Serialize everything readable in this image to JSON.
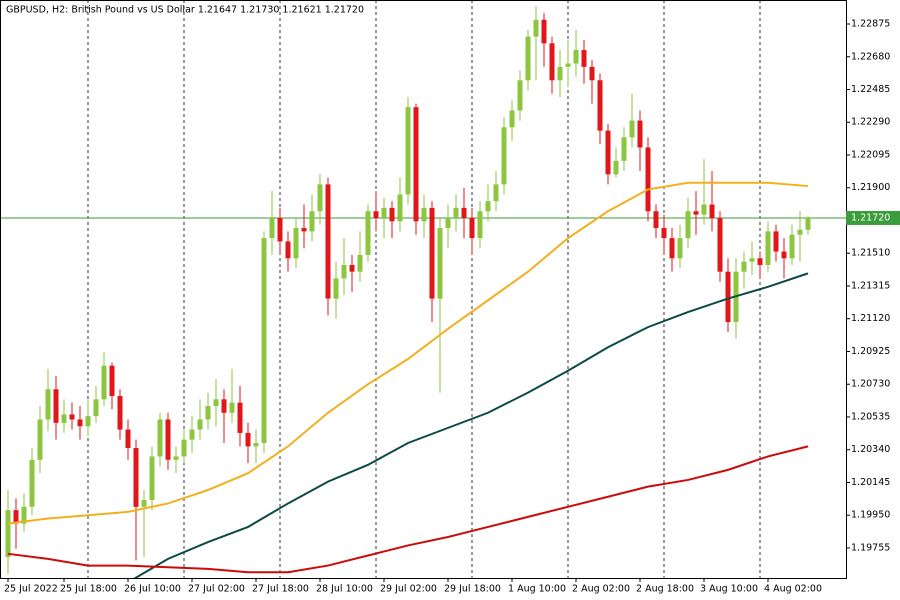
{
  "chart_data": {
    "type": "candlestick",
    "title": "GBPUSD, H2:  British Pound vs US Dollar  1.21647 1.21730 1.21621 1.21720",
    "categories": [
      "25 Jul 2022",
      null,
      null,
      null,
      null,
      null,
      null,
      "25 Jul 18:00",
      null,
      null,
      null,
      null,
      null,
      null,
      null,
      "26 Jul 10:00",
      null,
      null,
      null,
      null,
      null,
      null,
      null,
      "27 Jul 02:00",
      null,
      null,
      null,
      null,
      null,
      null,
      null,
      "27 Jul 18:00",
      null,
      null,
      null,
      null,
      null,
      null,
      null,
      "28 Jul 10:00",
      null,
      null,
      null,
      null,
      null,
      null,
      null,
      "29 Jul 02:00",
      null,
      null,
      null,
      null,
      null,
      null,
      null,
      "29 Jul 18:00",
      null,
      null,
      null,
      null,
      null,
      null,
      null,
      "1 Aug 10:00",
      null,
      null,
      null,
      null,
      null,
      null,
      null,
      "2 Aug 02:00",
      null,
      null,
      null,
      null,
      null,
      null,
      null,
      "2 Aug 18:00",
      null,
      null,
      null,
      null,
      null,
      null,
      null,
      "3 Aug 10:00",
      null,
      null,
      null,
      null,
      null,
      null,
      null,
      "4 Aug 02:00",
      null,
      null,
      null,
      null,
      null
    ],
    "open": [
      1.197,
      1.1998,
      1.199,
      1.2,
      1.2028,
      1.2052,
      1.207,
      1.205,
      1.2055,
      1.2052,
      1.2048,
      1.2054,
      1.2064,
      1.2084,
      1.2066,
      1.2046,
      1.2035,
      1.2,
      1.2004,
      1.203,
      1.2052,
      1.2028,
      1.203,
      1.204,
      1.2046,
      1.2052,
      1.206,
      1.2064,
      1.2056,
      1.2062,
      1.2044,
      1.2036,
      1.2038,
      1.216,
      1.2172,
      1.2158,
      1.2148,
      1.2166,
      1.2164,
      1.2176,
      1.2192,
      1.2124,
      1.2136,
      1.2144,
      1.214,
      1.215,
      1.2176,
      1.2172,
      1.2178,
      1.217,
      1.2186,
      1.2238,
      1.217,
      1.2178,
      1.2124,
      1.2166,
      1.2172,
      1.2178,
      1.2172,
      1.216,
      1.2176,
      1.2182,
      1.2192,
      1.2226,
      1.2236,
      1.2254,
      1.228,
      1.229,
      1.2276,
      1.2254,
      1.2262,
      1.2264,
      1.2272,
      1.2262,
      1.2254,
      1.2224,
      1.2198,
      1.2206,
      1.222,
      1.223,
      1.2214,
      1.2176,
      1.2166,
      1.216,
      1.2148,
      1.216,
      1.2176,
      1.2174,
      1.218,
      1.2172,
      1.214,
      1.211,
      1.214,
      1.2146,
      1.2148,
      1.2144,
      1.2164,
      1.2152,
      1.2148,
      1.2162,
      1.2165
    ],
    "high": [
      1.201,
      1.2005,
      1.2008,
      1.2035,
      1.206,
      1.2082,
      1.2078,
      1.2064,
      1.2062,
      1.206,
      1.2064,
      1.2072,
      1.2092,
      1.2086,
      1.207,
      1.2052,
      1.204,
      1.201,
      1.2036,
      1.2056,
      1.2056,
      1.2036,
      1.2046,
      1.2054,
      1.2064,
      1.2068,
      1.2076,
      1.207,
      1.2082,
      1.2072,
      1.205,
      1.2046,
      1.2164,
      1.2188,
      1.2178,
      1.2164,
      1.2172,
      1.218,
      1.2186,
      1.2198,
      1.2196,
      1.2146,
      1.216,
      1.215,
      1.2164,
      1.218,
      1.2188,
      1.2184,
      1.2182,
      1.2196,
      1.2244,
      1.224,
      1.2186,
      1.2182,
      1.2172,
      1.218,
      1.2186,
      1.219,
      1.2178,
      1.2182,
      1.2192,
      1.22,
      1.2232,
      1.2242,
      1.226,
      1.2284,
      1.2298,
      1.2294,
      1.228,
      1.2272,
      1.2278,
      1.2284,
      1.2278,
      1.2266,
      1.2258,
      1.2228,
      1.2214,
      1.2226,
      1.2246,
      1.2236,
      1.222,
      1.218,
      1.2174,
      1.2166,
      1.2168,
      1.2184,
      1.2188,
      1.2207,
      1.22,
      1.2176,
      1.2148,
      1.2148,
      1.2152,
      1.2158,
      1.2152,
      1.217,
      1.2168,
      1.216,
      1.2168,
      1.2176,
      1.2173
    ],
    "low": [
      1.196,
      1.1975,
      1.1985,
      1.1995,
      1.202,
      1.2045,
      1.204,
      1.2044,
      1.2046,
      1.204,
      1.2042,
      1.205,
      1.206,
      1.2058,
      1.204,
      1.2028,
      1.1968,
      1.197,
      1.1998,
      1.2024,
      1.2022,
      1.202,
      1.2026,
      1.2032,
      1.204,
      1.2046,
      1.2048,
      1.2038,
      1.205,
      1.2036,
      1.2026,
      1.2026,
      1.2032,
      1.215,
      1.215,
      1.214,
      1.2142,
      1.2154,
      1.2158,
      1.2168,
      1.2114,
      1.2112,
      1.2126,
      1.2128,
      1.2134,
      1.2146,
      1.2164,
      1.216,
      1.216,
      1.2164,
      1.218,
      1.2162,
      1.216,
      1.211,
      1.2068,
      1.2154,
      1.2164,
      1.216,
      1.215,
      1.2154,
      1.217,
      1.2176,
      1.2186,
      1.2218,
      1.223,
      1.2248,
      1.2254,
      1.2262,
      1.2246,
      1.2244,
      1.225,
      1.2256,
      1.2252,
      1.224,
      1.2216,
      1.2192,
      1.2196,
      1.22,
      1.2214,
      1.22,
      1.217,
      1.216,
      1.215,
      1.214,
      1.2142,
      1.2154,
      1.2162,
      1.2168,
      1.2164,
      1.2134,
      1.2104,
      1.21,
      1.213,
      1.2138,
      1.2136,
      1.214,
      1.2146,
      1.2136,
      1.2144,
      1.2146,
      1.2162
    ],
    "close": [
      1.1998,
      1.199,
      1.2,
      1.2028,
      1.2052,
      1.207,
      1.205,
      1.2055,
      1.2052,
      1.2048,
      1.2054,
      1.2064,
      1.2084,
      1.2066,
      1.2046,
      1.2035,
      1.2,
      1.2004,
      1.203,
      1.2052,
      1.2028,
      1.203,
      1.204,
      1.2046,
      1.2052,
      1.206,
      1.2064,
      1.2056,
      1.2062,
      1.2044,
      1.2036,
      1.2038,
      1.216,
      1.2172,
      1.2158,
      1.2148,
      1.2166,
      1.2164,
      1.2176,
      1.2192,
      1.2124,
      1.2136,
      1.2144,
      1.214,
      1.215,
      1.2176,
      1.2172,
      1.2178,
      1.217,
      1.2186,
      1.2238,
      1.217,
      1.2178,
      1.2124,
      1.2166,
      1.2172,
      1.2178,
      1.2172,
      1.216,
      1.2176,
      1.2182,
      1.2192,
      1.2226,
      1.2236,
      1.2254,
      1.228,
      1.229,
      1.2276,
      1.2254,
      1.2262,
      1.2264,
      1.2272,
      1.2262,
      1.2254,
      1.2224,
      1.2198,
      1.2206,
      1.222,
      1.223,
      1.2214,
      1.2176,
      1.2166,
      1.216,
      1.2148,
      1.216,
      1.2176,
      1.2174,
      1.218,
      1.2172,
      1.214,
      1.211,
      1.214,
      1.2146,
      1.2148,
      1.2144,
      1.2164,
      1.2152,
      1.2148,
      1.2162,
      1.2165,
      1.2172
    ],
    "up_color": "#8cc63f",
    "down_color": "#e0161b",
    "lines": [
      {
        "color": "#f2b01e",
        "x": [
          0,
          5,
          10,
          15,
          20,
          25,
          30,
          35,
          40,
          45,
          50,
          55,
          60,
          65,
          70,
          75,
          80,
          85,
          90,
          95,
          100
        ],
        "values": [
          1.199,
          1.1993,
          1.1995,
          1.1997,
          1.2002,
          1.201,
          1.202,
          1.2036,
          1.2056,
          1.2073,
          1.2088,
          1.2106,
          1.2123,
          1.214,
          1.216,
          1.2176,
          1.2189,
          1.2193,
          1.2193,
          1.2193,
          1.2191
        ]
      },
      {
        "color": "#0d4a45",
        "x": [
          0,
          5,
          10,
          15,
          20,
          25,
          30,
          35,
          40,
          45,
          50,
          55,
          60,
          65,
          70,
          75,
          80,
          85,
          90,
          95,
          100
        ],
        "values": [
          null,
          null,
          null,
          1.1955,
          1.1969,
          1.1979,
          1.1988,
          1.2002,
          1.2015,
          1.2025,
          1.2038,
          1.2047,
          1.2056,
          1.2068,
          1.2081,
          1.2095,
          1.2107,
          1.2116,
          1.2124,
          1.2131,
          1.2139
        ]
      },
      {
        "color": "#cc0a0a",
        "x": [
          0,
          5,
          10,
          15,
          20,
          25,
          30,
          35,
          40,
          45,
          50,
          55,
          60,
          65,
          70,
          75,
          80,
          85,
          90,
          95,
          100
        ],
        "values": [
          1.1972,
          1.1969,
          1.1965,
          1.1965,
          1.1964,
          1.1963,
          1.1961,
          1.1961,
          1.1965,
          1.1971,
          1.1977,
          1.1982,
          1.1988,
          1.1994,
          1.2,
          1.2006,
          1.2012,
          1.2016,
          1.2022,
          1.203,
          1.2036
        ]
      }
    ],
    "ylim": [
      1.19576,
      1.23018
    ],
    "yticks": [
      1.22875,
      {
        "value": 1.2268,
        "label": "1.22680"
      },
      1.22485,
      {
        "value": 1.2229,
        "label": "1.22290"
      },
      1.22095,
      {
        "value": 1.219,
        "label": "1.21900"
      },
      {
        "value": 1.2151,
        "label": "1.21510"
      },
      1.21315,
      {
        "value": 1.2112,
        "label": "1.21120"
      },
      1.20925,
      {
        "value": 1.2073,
        "label": "1.20730"
      },
      1.20535,
      {
        "value": 1.2034,
        "label": "1.20340"
      },
      1.20145,
      {
        "value": 1.1995,
        "label": "1.19950"
      },
      1.19755
    ],
    "current_price": {
      "value": 1.2172,
      "label": "1.21720"
    },
    "price_line_color": "#3a9c3a"
  }
}
